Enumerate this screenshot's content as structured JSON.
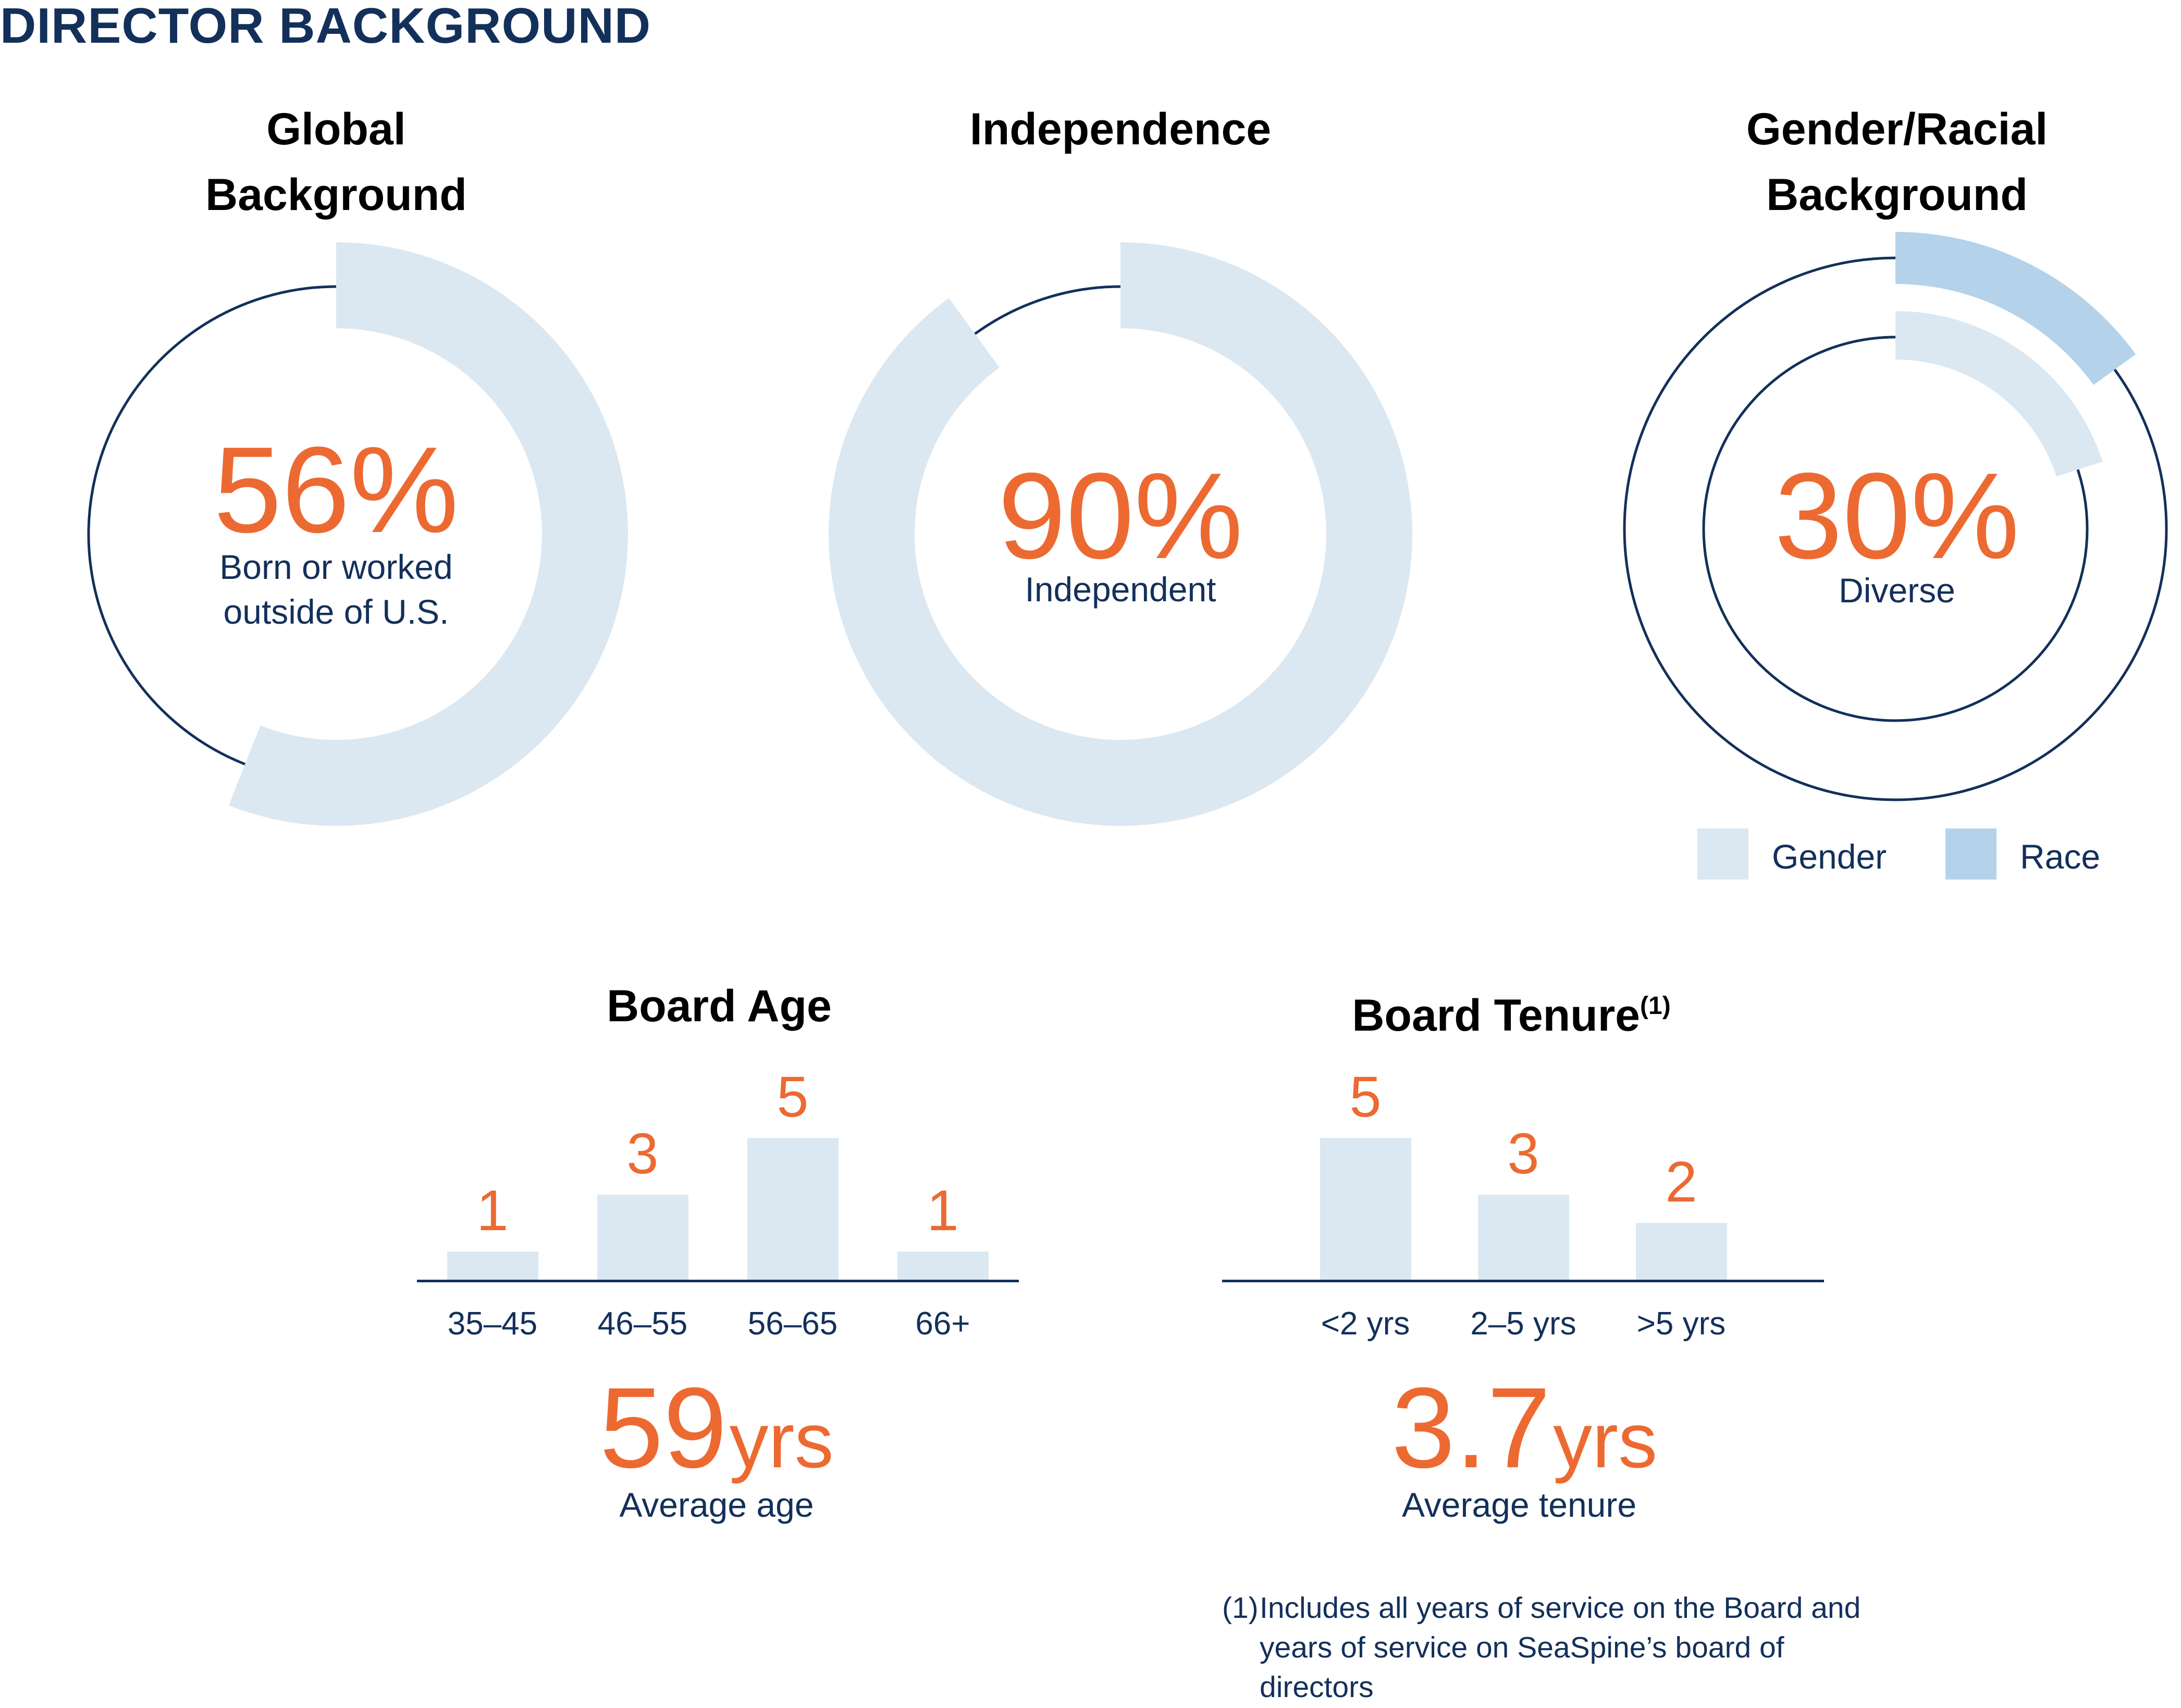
{
  "page_title": "DIRECTOR BACKGROUND",
  "colors": {
    "navy": "#13305a",
    "orange": "#ec6a32",
    "light_blue": "#dbe8f2",
    "race_blue": "#b4d3ea"
  },
  "donuts": {
    "global": {
      "title": "Global\nBackground",
      "value_text": "56%",
      "caption": "Born or worked\noutside of U.S."
    },
    "independence": {
      "title": "Independence",
      "value_text": "90%",
      "caption": "Independent"
    },
    "gender_racial": {
      "title": "Gender/Racial\nBackground",
      "value_text": "30%",
      "caption": "Diverse",
      "legend": [
        "Gender",
        "Race"
      ]
    }
  },
  "averages": {
    "age": {
      "number": "59",
      "unit": "yrs",
      "caption": "Average age"
    },
    "tenure": {
      "number": "3.7",
      "unit": "yrs",
      "caption": "Average tenure"
    }
  },
  "footnote": {
    "mark": "(1)",
    "text": "Includes all years of service on the Board and years of service on SeaSpine’s board of directors"
  },
  "chart_data": [
    {
      "type": "pie",
      "title": "Global Background",
      "values": [
        56,
        44
      ],
      "annotation": "56% Born or worked outside of U.S."
    },
    {
      "type": "pie",
      "title": "Independence",
      "values": [
        90,
        10
      ],
      "annotation": "90% Independent"
    },
    {
      "type": "pie",
      "title": "Gender/Racial Background",
      "series": [
        {
          "name": "Gender",
          "values": [
            20
          ]
        },
        {
          "name": "Race",
          "values": [
            15
          ]
        }
      ],
      "annotation": "30% Diverse",
      "legend": "bottom"
    },
    {
      "type": "bar",
      "title": "Board Age",
      "categories": [
        "35–45",
        "46–55",
        "56–65",
        "66+"
      ],
      "values": [
        1,
        3,
        5,
        1
      ],
      "ylim": [
        0,
        5
      ]
    },
    {
      "type": "bar",
      "title": "Board Tenure",
      "title_sup": "(1)",
      "categories": [
        "<2 yrs",
        "2–5 yrs",
        ">5 yrs"
      ],
      "values": [
        5,
        3,
        2
      ],
      "ylim": [
        0,
        5
      ]
    }
  ]
}
